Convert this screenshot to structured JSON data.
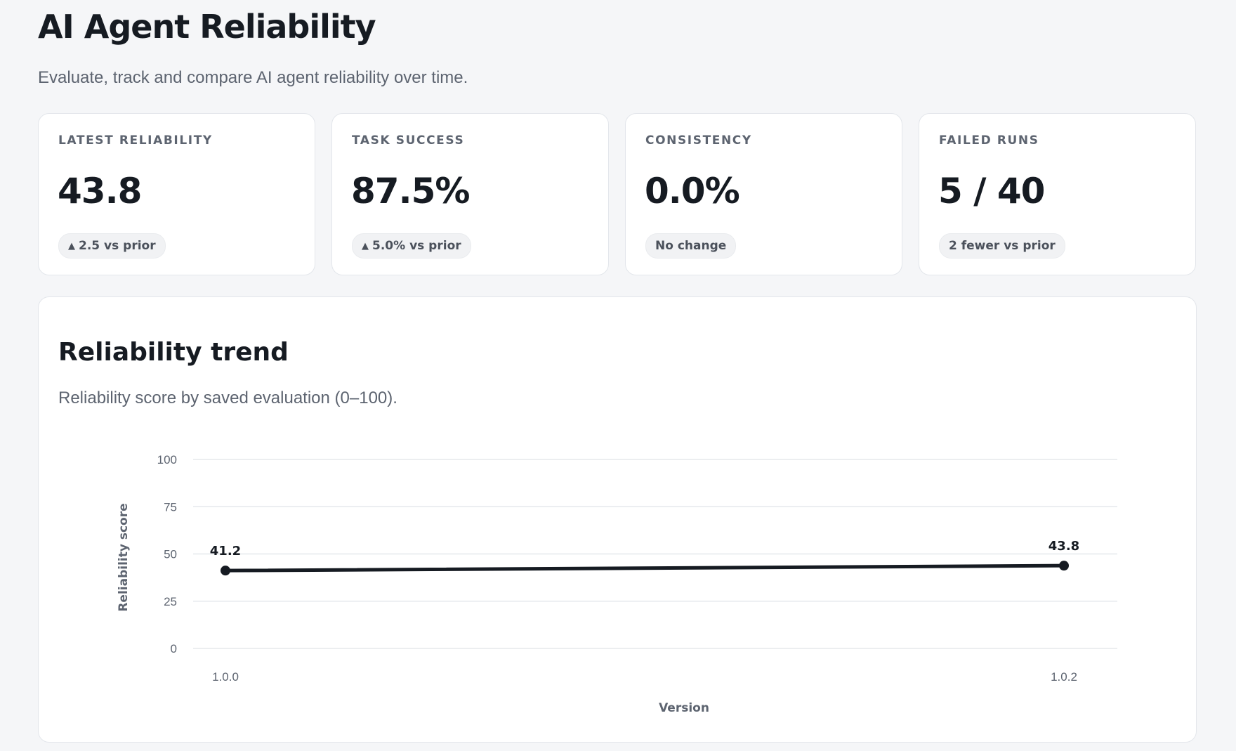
{
  "header": {
    "title": "AI Agent Reliability",
    "subtitle": "Evaluate, track and compare AI agent reliability over time."
  },
  "cards": [
    {
      "label": "LATEST RELIABILITY",
      "value": "43.8",
      "delta": "2.5 vs prior",
      "delta_icon": "triangle-up-icon",
      "delta_arrow": "▲"
    },
    {
      "label": "TASK SUCCESS",
      "value": "87.5%",
      "delta": "5.0% vs prior",
      "delta_icon": "triangle-up-icon",
      "delta_arrow": "▲"
    },
    {
      "label": "CONSISTENCY",
      "value": "0.0%",
      "delta": "No change"
    },
    {
      "label": "FAILED RUNS",
      "value": "5 / 40",
      "delta": "2 fewer vs prior"
    }
  ],
  "trend": {
    "title": "Reliability trend",
    "subtitle": "Reliability score by saved evaluation (0–100)."
  },
  "colors": {
    "line": "#161b22",
    "grid": "#e6e8ec",
    "muted_text": "#5d6470"
  },
  "chart_data": {
    "type": "line",
    "x": [
      "1.0.0",
      "1.0.2"
    ],
    "series": [
      {
        "values": [
          41.2,
          43.8
        ]
      }
    ],
    "data_labels": [
      "41.2",
      "43.8"
    ],
    "xlabel": "Version",
    "ylabel": "Reliability score",
    "ylim": [
      0,
      100
    ],
    "yticks": [
      0,
      25,
      50,
      75,
      100
    ],
    "grid": true,
    "legend": "none"
  }
}
